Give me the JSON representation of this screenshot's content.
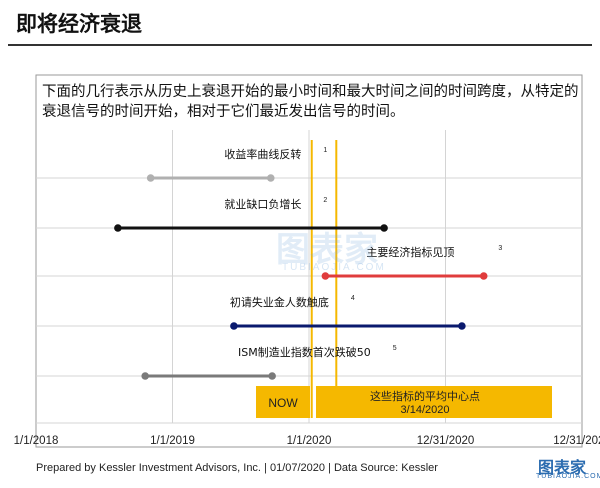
{
  "title": "即将经济衰退",
  "description": "下面的几行表示从历史上衰退开始的最小时间和最大时间之间的时间跨度，从特定的衰退信号的时间开始，相对于它们最近发出信号的时间。",
  "footer": "Prepared by Kessler Investment Advisors, Inc. | 01/07/2020 | Data Source: Kessler",
  "watermark": {
    "name": "图表家",
    "sub": "TUBIAOJIA.COM"
  },
  "colors": {
    "accent": "#f5b800",
    "border": "#999999"
  },
  "chart_data": {
    "type": "range",
    "x_axis": {
      "ticks": [
        "1/1/2018",
        "1/1/2019",
        "1/1/2020",
        "12/31/2020",
        "12/31/2021"
      ],
      "tick_values": [
        2018.0,
        2019.0,
        2020.0,
        2021.0,
        2022.0
      ]
    },
    "now": {
      "label": "NOW",
      "x": 2020.02
    },
    "average": {
      "label": "这些指标的平均中心点",
      "date_label": "3/14/2020",
      "x": 2020.2
    },
    "series": [
      {
        "label": "收益率曲线反转",
        "note": "1",
        "color": "#b0b0b0",
        "start": 2018.84,
        "end": 2019.72,
        "label_x": 2019.38
      },
      {
        "label": "就业缺口负增长",
        "note": "2",
        "color": "#111111",
        "start": 2018.6,
        "end": 2020.55,
        "label_x": 2019.38
      },
      {
        "label": "主要经济指标见顶",
        "note": "3",
        "color": "#e03c3c",
        "start": 2020.12,
        "end": 2021.28,
        "label_x": 2020.42
      },
      {
        "label": "初请失业金人数触底",
        "note": "4",
        "color": "#0a1a6e",
        "start": 2019.45,
        "end": 2021.12,
        "label_x": 2019.42
      },
      {
        "label": "ISM制造业指数首次跌破50",
        "note": "5",
        "color": "#7a7a7a",
        "start": 2018.8,
        "end": 2019.73,
        "label_x": 2019.48
      }
    ]
  }
}
